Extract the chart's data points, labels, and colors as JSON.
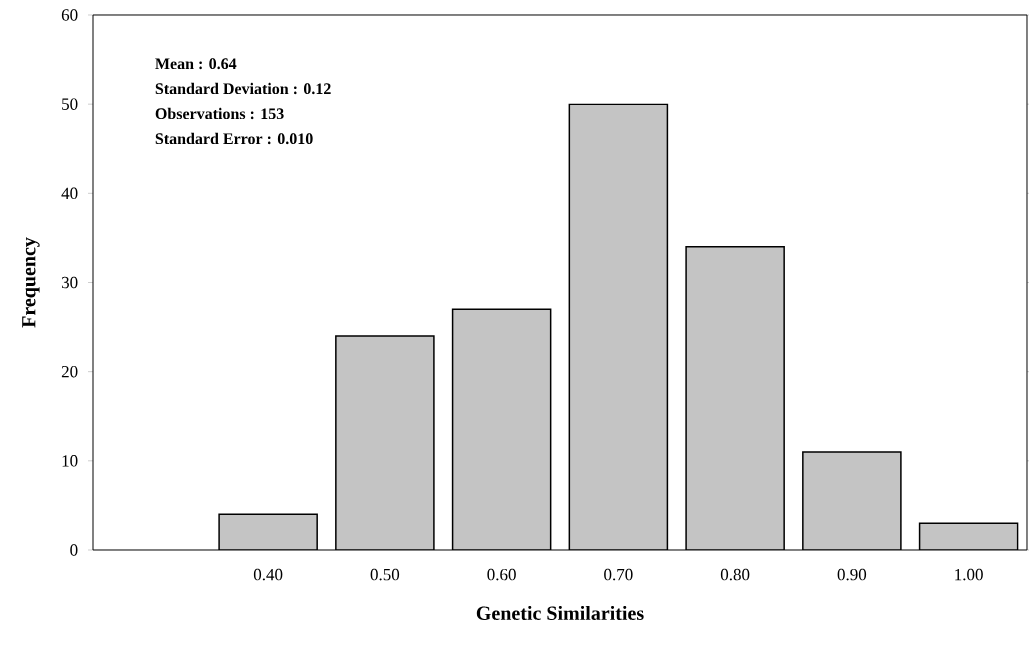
{
  "chart_data": {
    "type": "bar",
    "xlabel": "Genetic Similarities",
    "ylabel": "Frequency",
    "categories": [
      null,
      "0.40",
      "0.50",
      "0.60",
      "0.70",
      "0.80",
      "0.90",
      "1.00"
    ],
    "values": [
      null,
      4,
      24,
      27,
      50,
      34,
      11,
      3
    ],
    "color": "#c4c4c4",
    "ylim": [
      0,
      60
    ],
    "yticks": [
      0,
      10,
      20,
      30,
      40,
      50,
      60
    ],
    "annotations": [
      "Mean : 0.64",
      "Standard Deviation : 0.12",
      "Observations : 153",
      "Standard Error : 0.010"
    ]
  }
}
